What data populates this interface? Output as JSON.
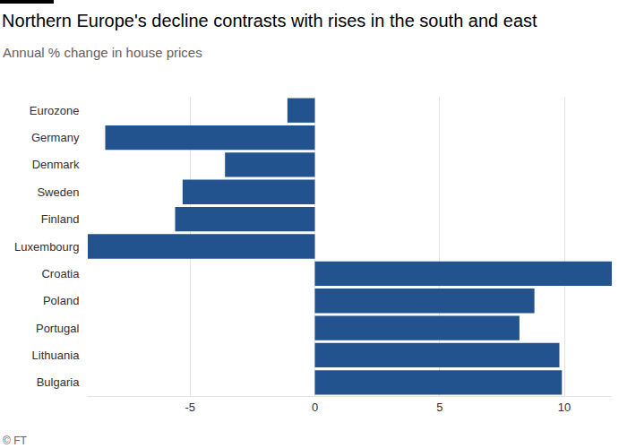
{
  "chart_data": {
    "type": "bar",
    "orientation": "horizontal",
    "title": "Northern Europe's decline contrasts with rises in the south and east",
    "subtitle": "Annual % change in house prices",
    "source": "© FT",
    "categories": [
      "Eurozone",
      "Germany",
      "Denmark",
      "Sweden",
      "Finland",
      "Luxembourg",
      "Croatia",
      "Poland",
      "Portugal",
      "Lithuania",
      "Bulgaria"
    ],
    "values": [
      -1.1,
      -8.4,
      -3.6,
      -5.3,
      -5.6,
      -9.1,
      11.9,
      8.8,
      8.2,
      9.8,
      9.9
    ],
    "color": "#22538e",
    "xlim": [
      -9.1,
      11.9
    ],
    "xticks": [
      -5,
      0,
      5,
      10
    ],
    "grid": true
  }
}
